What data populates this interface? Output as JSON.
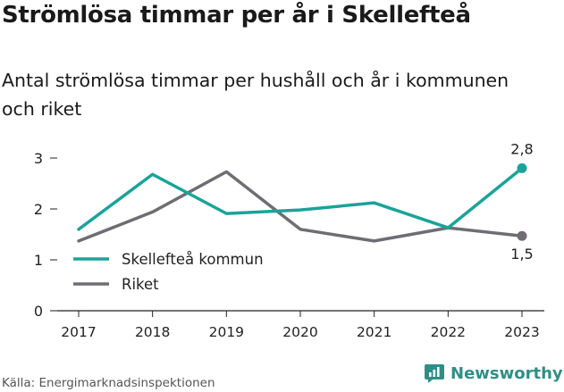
{
  "header": {
    "title": "Strömlösa timmar per år i Skellefteå",
    "subtitle": "Antal strömlösa timmar per hushåll och år i kommunen och riket"
  },
  "footer": {
    "source": "Källa: Energimarknadsinspektionen",
    "brand": "Newsworthy",
    "brand_color": "#2f8f86"
  },
  "chart_data": {
    "type": "line",
    "title": "Strömlösa timmar per år i Skellefteå",
    "subtitle": "Antal strömlösa timmar per hushåll och år i kommunen och riket",
    "xlabel": "",
    "ylabel": "",
    "x": [
      2017,
      2018,
      2019,
      2020,
      2021,
      2022,
      2023
    ],
    "x_tick_labels": [
      "2017",
      "2018",
      "2019",
      "2020",
      "2021",
      "2022",
      "2023"
    ],
    "y_ticks": [
      0,
      1,
      2,
      3
    ],
    "y_tick_labels": [
      "0",
      "1",
      "2",
      "3"
    ],
    "ylim": [
      0,
      3.2
    ],
    "grid": false,
    "legend_position": "bottom-left",
    "series": [
      {
        "name": "Skellefteå kommun",
        "color": "#1aa399",
        "values": [
          1.6,
          2.68,
          1.91,
          1.98,
          2.12,
          1.63,
          2.8
        ],
        "end_label": "2,8"
      },
      {
        "name": "Riket",
        "color": "#6f6d73",
        "values": [
          1.37,
          1.94,
          2.73,
          1.6,
          1.37,
          1.63,
          1.47
        ],
        "end_label": "1,5"
      }
    ]
  }
}
